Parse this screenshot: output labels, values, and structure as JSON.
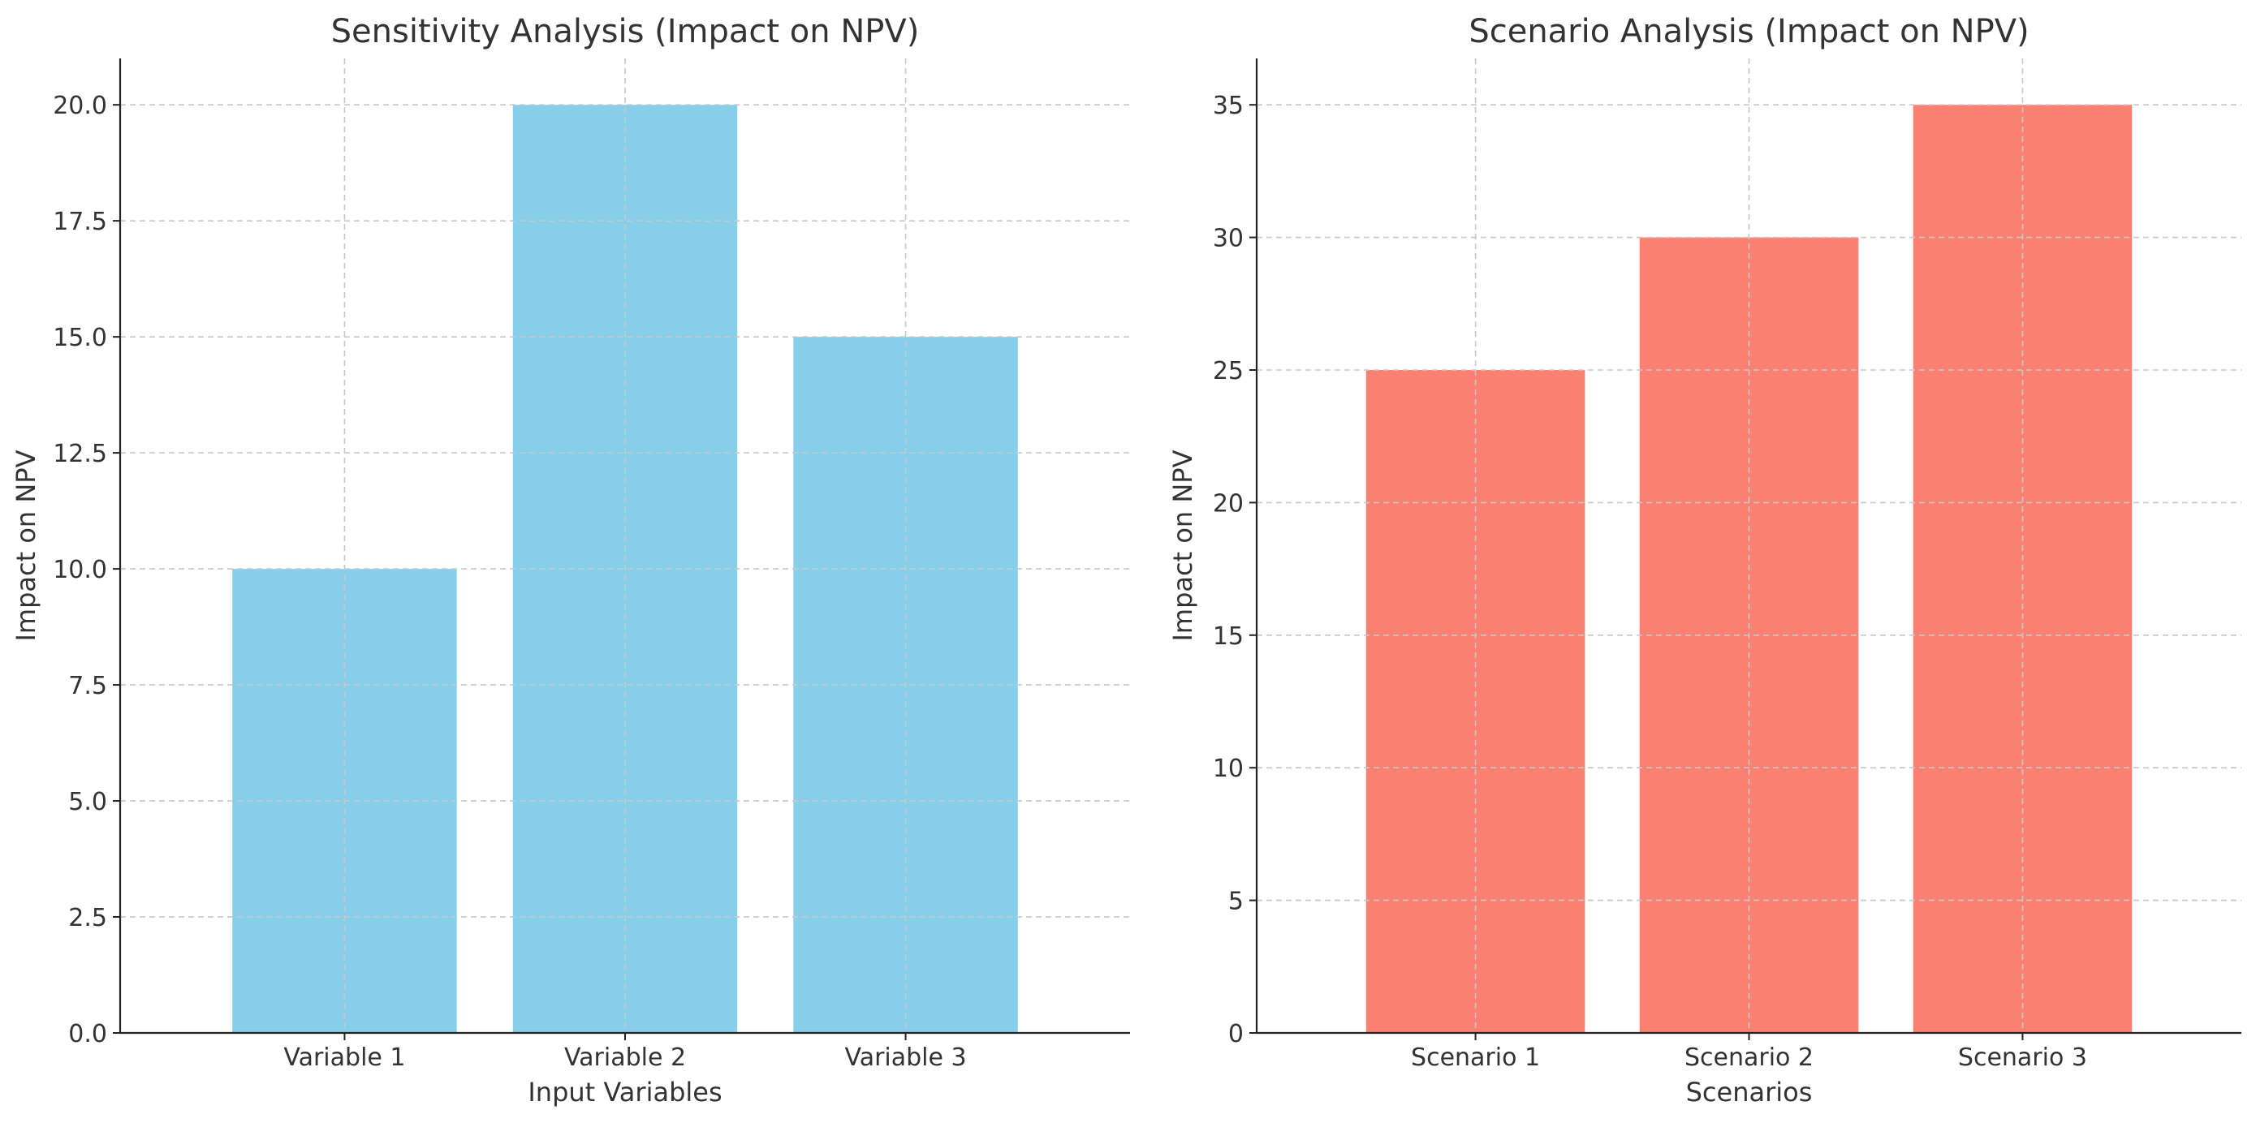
{
  "chart_data": [
    {
      "type": "bar",
      "title": "Sensitivity Analysis (Impact on NPV)",
      "xlabel": "Input Variables",
      "ylabel": "Impact on NPV",
      "categories": [
        "Variable 1",
        "Variable 2",
        "Variable 3"
      ],
      "values": [
        10,
        20,
        15
      ],
      "ylim": [
        0,
        21
      ],
      "yticks": [
        0.0,
        2.5,
        5.0,
        7.5,
        10.0,
        12.5,
        15.0,
        17.5,
        20.0
      ],
      "ytick_labels": [
        "0.0",
        "2.5",
        "5.0",
        "7.5",
        "10.0",
        "12.5",
        "15.0",
        "17.5",
        "20.0"
      ],
      "color": "#87CEEB",
      "grid": true
    },
    {
      "type": "bar",
      "title": "Scenario Analysis (Impact on NPV)",
      "xlabel": "Scenarios",
      "ylabel": "Impact on NPV",
      "categories": [
        "Scenario 1",
        "Scenario 2",
        "Scenario 3"
      ],
      "values": [
        25,
        30,
        35
      ],
      "ylim": [
        0,
        36.75
      ],
      "yticks": [
        0,
        5,
        10,
        15,
        20,
        25,
        30,
        35
      ],
      "ytick_labels": [
        "0",
        "5",
        "10",
        "15",
        "20",
        "25",
        "30",
        "35"
      ],
      "color": "#FA8072",
      "grid": true
    }
  ]
}
